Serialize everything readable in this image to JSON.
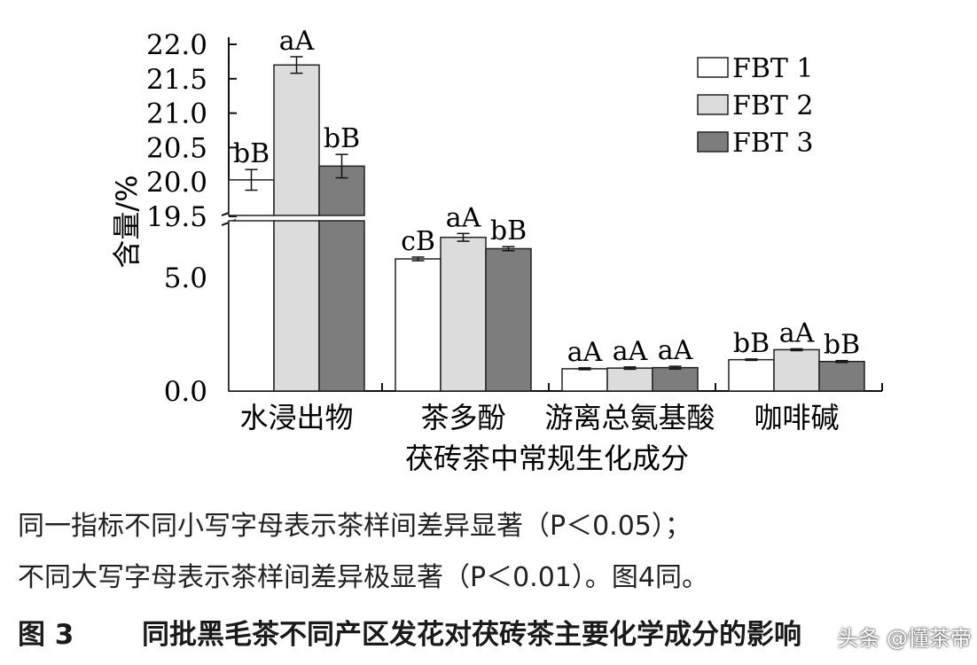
{
  "chart_data": {
    "type": "bar",
    "ylabel": "含量/%",
    "xlabel": "茯砖茶中常规生化成分",
    "categories": [
      "水浸出物",
      "茶多酚",
      "游离总氨基酸",
      "咖啡碱"
    ],
    "series": [
      {
        "name": "FBT 1",
        "color": "#ffffff",
        "values": [
          20.03,
          5.82,
          0.98,
          1.38
        ],
        "errors": [
          0.15,
          0.08,
          0.04,
          0.03
        ],
        "letters": [
          "bB",
          "cB",
          "aA",
          "bB"
        ]
      },
      {
        "name": "FBT 2",
        "color": "#dcdcdc",
        "values": [
          21.7,
          6.77,
          1.01,
          1.82
        ],
        "errors": [
          0.12,
          0.17,
          0.05,
          0.04
        ],
        "letters": [
          "aA",
          "aA",
          "aA",
          "aA"
        ]
      },
      {
        "name": "FBT 3",
        "color": "#7d7d7d",
        "values": [
          20.23,
          6.27,
          1.03,
          1.3
        ],
        "errors": [
          0.17,
          0.09,
          0.06,
          0.04
        ],
        "letters": [
          "bB",
          "bB",
          "aA",
          "bB"
        ]
      }
    ],
    "axis_break": true,
    "upper_yticks": [
      "19.5",
      "20.0",
      "20.5",
      "21.0",
      "21.5",
      "22.0"
    ],
    "upper_ylim": [
      19.5,
      22.0
    ],
    "lower_yticks": [
      "0.0",
      "5.0"
    ],
    "lower_ylim": [
      0,
      7.5
    ],
    "legend_position": "top-right",
    "grid": false
  },
  "caption": {
    "line1": "同一指标不同小写字母表示茶样间差异显著（P＜0.05）；",
    "line2": "不同大写字母表示茶样间差异极显著（P＜0.01）。图4同。"
  },
  "figure": {
    "number": "图 3",
    "title": "同批黑毛茶不同产区发花对茯砖茶主要化学成分的影响"
  },
  "watermark": "头条 @懂茶帝"
}
